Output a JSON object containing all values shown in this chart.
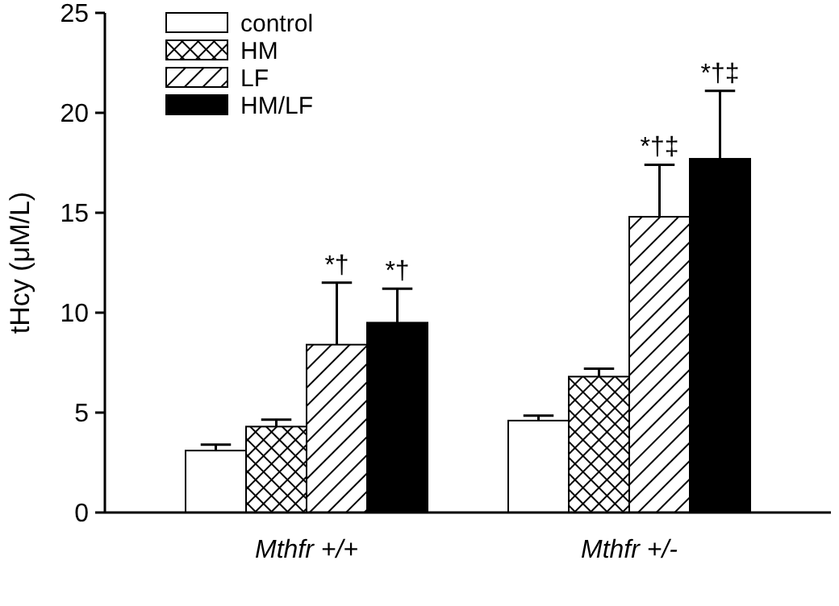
{
  "chart_data": {
    "type": "bar",
    "ylabel": "tHcy (μM/L)",
    "categories": [
      "Mthfr +/+",
      "Mthfr +/-"
    ],
    "series": [
      {
        "name": "control",
        "color": "#ffffff",
        "values": [
          3.1,
          4.6
        ],
        "errors": [
          [
            3.1,
            3.4
          ],
          [
            4.6,
            4.85
          ]
        ]
      },
      {
        "name": "HM",
        "color": "#000000",
        "values": [
          4.3,
          6.8
        ],
        "errors": [
          [
            4.3,
            4.65
          ],
          [
            6.8,
            7.2
          ]
        ]
      },
      {
        "name": "LF",
        "color": "#000000",
        "values": [
          8.4,
          14.8
        ],
        "errors": [
          [
            8.4,
            11.5
          ],
          [
            14.8,
            17.4
          ]
        ]
      },
      {
        "name": "HM/LF",
        "color": "#000000",
        "values": [
          9.5,
          17.7
        ],
        "errors": [
          [
            9.5,
            11.2
          ],
          [
            17.7,
            21.1
          ]
        ]
      }
    ],
    "ylim": [
      0,
      25
    ],
    "yticks": [
      0,
      5,
      10,
      15,
      20,
      25
    ],
    "grid": false,
    "legend": "top left",
    "annotations": [
      "*†",
      "*†",
      "*†‡",
      "*†‡"
    ]
  }
}
